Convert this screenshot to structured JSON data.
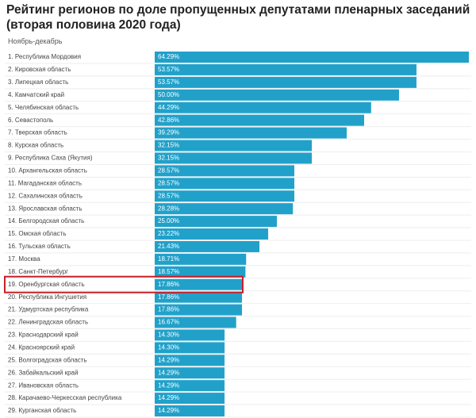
{
  "chart_data": {
    "type": "hbar",
    "title": "Рейтинг регионов по доле пропущенных депутатами пленарных заседаний (вторая половина 2020 года)",
    "subtitle": "Ноябрь-декабрь",
    "categories": [
      "1. Республика Мордовия",
      "2. Кировская область",
      "3. Липецкая область",
      "4. Камчатский край",
      "5. Челябинская область",
      "6. Севастополь",
      "7. Тверская область",
      "8. Курская область",
      "9. Республика Саха (Якутия)",
      "10. Архангельская область",
      "11. Магаданская область",
      "12. Сахалинская область",
      "13. Ярославская область",
      "14. Белгородская область",
      "15. Омская область",
      "16. Тульская область",
      "17. Москва",
      "18. Санкт-Петербург",
      "19. Оренбургская область",
      "20. Республика Ингушетия",
      "21. Удмуртская республика",
      "22. Ленинградская область",
      "23. Краснодарский край",
      "24. Красноярский край",
      "25. Волгоградская область",
      "26. Забайкальский край",
      "27. Ивановская область",
      "28. Карачаево-Черкесская республика",
      "29. Курганская область"
    ],
    "values": [
      64.29,
      53.57,
      53.57,
      50.0,
      44.29,
      42.86,
      39.29,
      32.15,
      32.15,
      28.57,
      28.57,
      28.57,
      28.28,
      25.0,
      23.22,
      21.43,
      18.71,
      18.57,
      17.86,
      17.86,
      17.86,
      16.67,
      14.3,
      14.3,
      14.29,
      14.29,
      14.29,
      14.29,
      14.29
    ],
    "value_labels": [
      "64.29%",
      "53.57%",
      "53.57%",
      "50.00%",
      "44.29%",
      "42.86%",
      "39.29%",
      "32.15%",
      "32.15%",
      "28.57%",
      "28.57%",
      "28.57%",
      "28.28%",
      "25.00%",
      "23.22%",
      "21.43%",
      "18.71%",
      "18.57%",
      "17.86%",
      "17.86%",
      "17.86%",
      "16.67%",
      "14.30%",
      "14.30%",
      "14.29%",
      "14.29%",
      "14.29%",
      "14.29%",
      "14.29%"
    ],
    "color": "#21a1ca",
    "highlight": 18,
    "highlight_color": "#c8202a",
    "xlim": [
      0,
      64.29
    ]
  }
}
